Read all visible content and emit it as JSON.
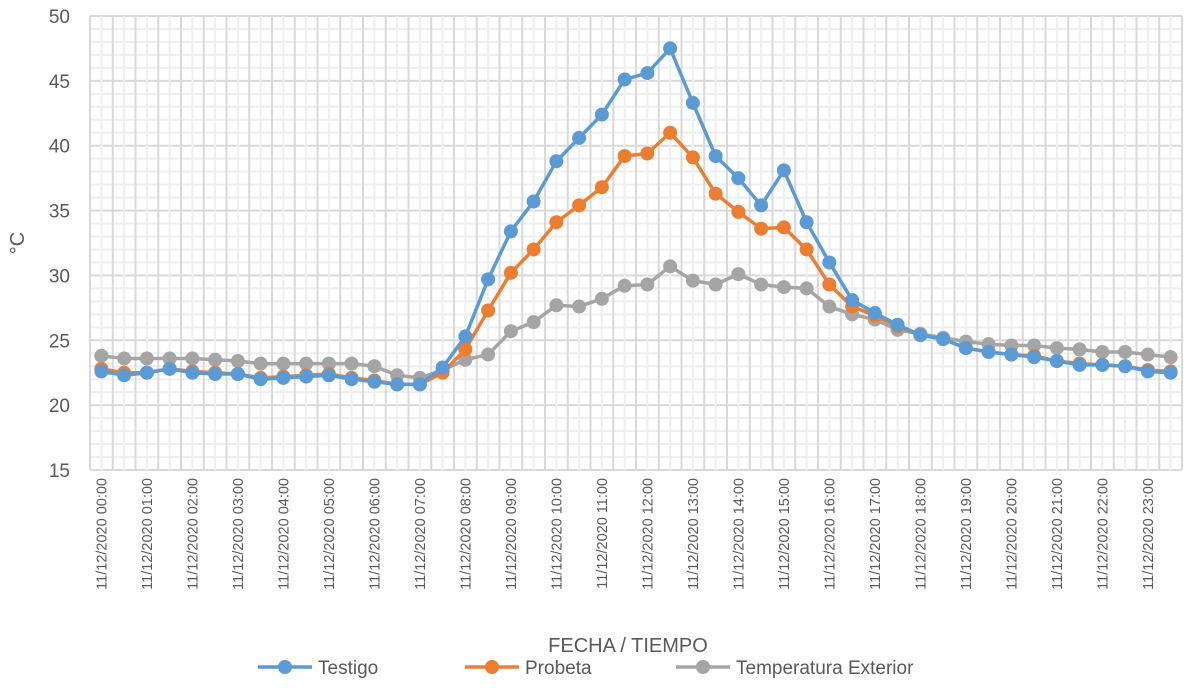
{
  "chart_data": {
    "type": "line",
    "title": "",
    "xlabel": "FECHA / TIEMPO",
    "ylabel": "°C",
    "ylim": [
      15,
      50
    ],
    "yticks": [
      15,
      20,
      25,
      30,
      35,
      40,
      45,
      50
    ],
    "grid": true,
    "legend_position": "bottom",
    "x": [
      "11/12/2020 00:00",
      "11/12/2020 00:30",
      "11/12/2020 01:00",
      "11/12/2020 01:30",
      "11/12/2020 02:00",
      "11/12/2020 02:30",
      "11/12/2020 03:00",
      "11/12/2020 03:30",
      "11/12/2020 04:00",
      "11/12/2020 04:30",
      "11/12/2020 05:00",
      "11/12/2020 05:30",
      "11/12/2020 06:00",
      "11/12/2020 06:30",
      "11/12/2020 07:00",
      "11/12/2020 07:30",
      "11/12/2020 08:00",
      "11/12/2020 08:30",
      "11/12/2020 09:00",
      "11/12/2020 09:30",
      "11/12/2020 10:00",
      "11/12/2020 10:30",
      "11/12/2020 11:00",
      "11/12/2020 11:30",
      "11/12/2020 12:00",
      "11/12/2020 12:30",
      "11/12/2020 13:00",
      "11/12/2020 13:30",
      "11/12/2020 14:00",
      "11/12/2020 14:30",
      "11/12/2020 15:00",
      "11/12/2020 15:30",
      "11/12/2020 16:00",
      "11/12/2020 16:30",
      "11/12/2020 17:00",
      "11/12/2020 17:30",
      "11/12/2020 18:00",
      "11/12/2020 18:30",
      "11/12/2020 19:00",
      "11/12/2020 19:30",
      "11/12/2020 20:00",
      "11/12/2020 20:30",
      "11/12/2020 21:00",
      "11/12/2020 21:30",
      "11/12/2020 22:00",
      "11/12/2020 22:30",
      "11/12/2020 23:00",
      "11/12/2020 23:30"
    ],
    "xtick_labels": [
      "11/12/2020 00:00",
      "11/12/2020 01:00",
      "11/12/2020 02:00",
      "11/12/2020 03:00",
      "11/12/2020 04:00",
      "11/12/2020 05:00",
      "11/12/2020 06:00",
      "11/12/2020 07:00",
      "11/12/2020 08:00",
      "11/12/2020 09:00",
      "11/12/2020 10:00",
      "11/12/2020 11:00",
      "11/12/2020 12:00",
      "11/12/2020 13:00",
      "11/12/2020 14:00",
      "11/12/2020 15:00",
      "11/12/2020 16:00",
      "11/12/2020 17:00",
      "11/12/2020 18:00",
      "11/12/2020 19:00",
      "11/12/2020 20:00",
      "11/12/2020 21:00",
      "11/12/2020 22:00",
      "11/12/2020 23:00"
    ],
    "series": [
      {
        "name": "Testigo",
        "color": "#5B9BD5",
        "values": [
          22.6,
          22.3,
          22.5,
          22.8,
          22.5,
          22.4,
          22.4,
          22.0,
          22.1,
          22.2,
          22.3,
          22.0,
          21.8,
          21.6,
          21.6,
          22.9,
          25.3,
          29.7,
          33.4,
          35.7,
          38.8,
          40.6,
          42.4,
          45.1,
          45.6,
          47.5,
          43.3,
          39.2,
          37.5,
          35.4,
          38.1,
          34.1,
          31.0,
          28.1,
          27.1,
          26.2,
          25.4,
          25.1,
          24.4,
          24.1,
          23.9,
          23.7,
          23.4,
          23.1,
          23.1,
          23.0,
          22.6,
          22.5
        ]
      },
      {
        "name": "Probeta",
        "color": "#ED7D31",
        "values": [
          22.8,
          22.5,
          22.5,
          22.8,
          22.6,
          22.5,
          22.4,
          22.1,
          22.2,
          22.3,
          22.4,
          22.1,
          21.9,
          21.6,
          21.6,
          22.5,
          24.3,
          27.3,
          30.2,
          32.0,
          34.1,
          35.4,
          36.8,
          39.2,
          39.4,
          41.0,
          39.1,
          36.3,
          34.9,
          33.6,
          33.7,
          32.0,
          29.3,
          27.6,
          26.9,
          26.1,
          25.4,
          25.1,
          24.4,
          24.1,
          23.9,
          23.8,
          23.4,
          23.2,
          23.1,
          23.0,
          22.7,
          22.6
        ]
      },
      {
        "name": "Temperatura Exterior",
        "color": "#A5A5A5",
        "values": [
          23.8,
          23.6,
          23.6,
          23.6,
          23.6,
          23.5,
          23.4,
          23.2,
          23.2,
          23.2,
          23.2,
          23.2,
          23.0,
          22.3,
          22.1,
          22.7,
          23.5,
          23.9,
          25.7,
          26.4,
          27.7,
          27.6,
          28.2,
          29.2,
          29.3,
          30.7,
          29.6,
          29.3,
          30.1,
          29.3,
          29.1,
          29.0,
          27.6,
          27.0,
          26.6,
          25.8,
          25.5,
          25.2,
          24.9,
          24.7,
          24.6,
          24.6,
          24.4,
          24.3,
          24.1,
          24.1,
          23.9,
          23.7
        ]
      }
    ]
  }
}
